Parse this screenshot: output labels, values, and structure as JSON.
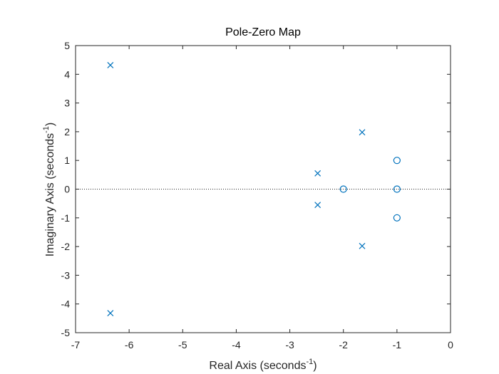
{
  "chart_data": {
    "type": "scatter",
    "title": "Pole-Zero Map",
    "xlabel": "Real Axis (seconds",
    "ylabel": "Imaginary Axis (seconds",
    "axis_unit_exponent": "-1",
    "axis_label_suffix": ")",
    "xlim": [
      -7,
      0
    ],
    "ylim": [
      -5,
      5
    ],
    "xticks": [
      -7,
      -6,
      -5,
      -4,
      -3,
      -2,
      -1,
      0
    ],
    "yticks": [
      -5,
      -4,
      -3,
      -2,
      -1,
      0,
      1,
      2,
      3,
      4,
      5
    ],
    "zero_reference_line": true,
    "grid": false,
    "series": [
      {
        "marker": "x",
        "points": [
          {
            "x": -6.35,
            "y": 4.32
          },
          {
            "x": -6.35,
            "y": -4.32
          },
          {
            "x": -2.48,
            "y": 0.55
          },
          {
            "x": -2.48,
            "y": -0.55
          },
          {
            "x": -1.65,
            "y": 1.98
          },
          {
            "x": -1.65,
            "y": -1.98
          }
        ]
      },
      {
        "marker": "o",
        "points": [
          {
            "x": -2.0,
            "y": 0.0
          },
          {
            "x": -1.0,
            "y": 1.0
          },
          {
            "x": -1.0,
            "y": 0.0
          },
          {
            "x": -1.0,
            "y": -1.0
          }
        ]
      }
    ],
    "colors": {
      "marker": "#0072BD",
      "axes": "#262626",
      "reference_line": "#262626"
    }
  }
}
